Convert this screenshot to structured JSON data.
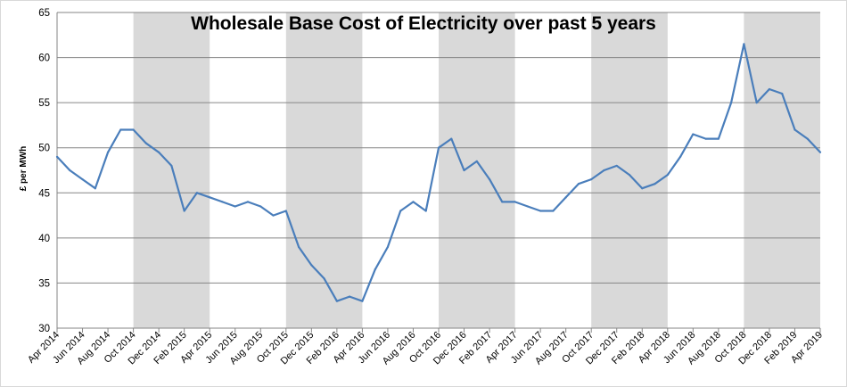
{
  "chart_data": {
    "type": "line",
    "title": "Wholesale Base Cost of Electricity over past 5 years",
    "ylabel": "£ per MWh",
    "xlabel": "",
    "ylim": [
      30,
      65
    ],
    "yticks": [
      30,
      35,
      40,
      45,
      50,
      55,
      60,
      65
    ],
    "grid": true,
    "x_ticks": [
      "Apr 2014",
      "Jun 2014",
      "Aug 2014",
      "Oct 2014",
      "Dec 2014",
      "Feb 2015",
      "Apr 2015",
      "Jun 2015",
      "Aug 2015",
      "Oct 2015",
      "Dec 2015",
      "Feb 2016",
      "Apr 2016",
      "Jun 2016",
      "Aug 2016",
      "Oct 2016",
      "Dec 2016",
      "Feb 2017",
      "Apr 2017",
      "Jun 2017",
      "Aug 2017",
      "Oct 2017",
      "Dec 2017",
      "Feb 2018",
      "Apr 2018",
      "Jun 2018",
      "Aug 2018",
      "Oct 2018",
      "Dec 2018",
      "Feb 2019",
      "Apr 2019"
    ],
    "shaded_periods": [
      [
        "Oct 2014",
        "Apr 2015"
      ],
      [
        "Oct 2015",
        "Apr 2016"
      ],
      [
        "Oct 2016",
        "Apr 2017"
      ],
      [
        "Oct 2017",
        "Apr 2018"
      ],
      [
        "Oct 2018",
        "Apr 2019"
      ]
    ],
    "series": [
      {
        "color": "#4a7ebb",
        "x": [
          "Apr 2014",
          "May 2014",
          "Jun 2014",
          "Jul 2014",
          "Aug 2014",
          "Sep 2014",
          "Oct 2014",
          "Nov 2014",
          "Dec 2014",
          "Jan 2015",
          "Feb 2015",
          "Mar 2015",
          "Apr 2015",
          "May 2015",
          "Jun 2015",
          "Jul 2015",
          "Aug 2015",
          "Sep 2015",
          "Oct 2015",
          "Nov 2015",
          "Dec 2015",
          "Jan 2016",
          "Feb 2016",
          "Mar 2016",
          "Apr 2016",
          "May 2016",
          "Jun 2016",
          "Jul 2016",
          "Aug 2016",
          "Sep 2016",
          "Oct 2016",
          "Nov 2016",
          "Dec 2016",
          "Jan 2017",
          "Feb 2017",
          "Mar 2017",
          "Apr 2017",
          "May 2017",
          "Jun 2017",
          "Jul 2017",
          "Aug 2017",
          "Sep 2017",
          "Oct 2017",
          "Nov 2017",
          "Dec 2017",
          "Jan 2018",
          "Feb 2018",
          "Mar 2018",
          "Apr 2018",
          "May 2018",
          "Jun 2018",
          "Jul 2018",
          "Aug 2018",
          "Sep 2018",
          "Oct 2018",
          "Nov 2018",
          "Dec 2018",
          "Jan 2019",
          "Feb 2019",
          "Mar 2019",
          "Apr 2019"
        ],
        "values": [
          49,
          47.5,
          46.5,
          45.5,
          49.5,
          52,
          52,
          50.5,
          49.5,
          48,
          43,
          45,
          44.5,
          44,
          43.5,
          44,
          43.5,
          42.5,
          43,
          39,
          37,
          35.5,
          33,
          33.5,
          33,
          36.5,
          39,
          43,
          44,
          43,
          50,
          51,
          47.5,
          48.5,
          46.5,
          44,
          44,
          43.5,
          43,
          43,
          44.5,
          46,
          46.5,
          47.5,
          48,
          47,
          45.5,
          46,
          47,
          49,
          51.5,
          51,
          51,
          55,
          61.5,
          55,
          56.5,
          56,
          52,
          51,
          49.5
        ]
      }
    ]
  }
}
